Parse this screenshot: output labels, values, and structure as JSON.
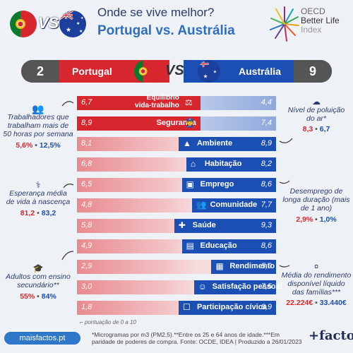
{
  "header": {
    "title_top": "Onde se vive melhor?",
    "title_main": "Portugal vs. Austrália",
    "vs_label": "VS",
    "oecd_line1": "OECD",
    "oecd_line2": "Better Life",
    "oecd_line3": "Index"
  },
  "scoreboard": {
    "pt_score": "2",
    "pt_name": "Portugal",
    "vs": "VS",
    "au_name": "Austrália",
    "au_score": "9"
  },
  "colors": {
    "portugal": "#d7262e",
    "australia": "#1c4fb3"
  },
  "chart_data": {
    "type": "bar",
    "title": "Portugal vs. Austrália",
    "scale": [
      0,
      10
    ],
    "categories": [
      "Equilíbrio vida-trabalho",
      "Segurança",
      "Ambiente",
      "Habitação",
      "Emprego",
      "Comunidade",
      "Saúde",
      "Educação",
      "Rendimento",
      "Satisfação pessoal",
      "Participação cívica"
    ],
    "series": [
      {
        "name": "Portugal",
        "values": [
          6.7,
          8.9,
          8.1,
          6.8,
          6.5,
          4.8,
          5.8,
          4.9,
          2.9,
          3.0,
          1.8
        ]
      },
      {
        "name": "Austrália",
        "values": [
          4.4,
          7.4,
          8.9,
          8.2,
          8.6,
          7.7,
          9.3,
          8.6,
          5.9,
          7.5,
          8.9
        ]
      }
    ],
    "display_values": {
      "pt": [
        "6,7",
        "8,9",
        "8,1",
        "6,8",
        "6,5",
        "4,8",
        "5,8",
        "4,9",
        "2,9",
        "3,0",
        "1,8"
      ],
      "au": [
        "4,4",
        "7,4",
        "8,9",
        "8,2",
        "8,6",
        "7,7",
        "9,3",
        "8,6",
        "5,9",
        "7,5",
        "8,9"
      ]
    },
    "labels": [
      "Equilíbrio\nvida-trabalho",
      "Segurança",
      "Ambiente",
      "Habitação",
      "Emprego",
      "Comunidade",
      "Saúde",
      "Educação",
      "Rendimento",
      "Satisfação pessoal",
      "Participação cívica"
    ],
    "winner": [
      "pt",
      "pt",
      "au",
      "au",
      "au",
      "au",
      "au",
      "au",
      "au",
      "au",
      "au"
    ],
    "icons": [
      "work-life-icon",
      "security-guard-icon",
      "tree-icon",
      "house-icon",
      "briefcase-icon",
      "people-icon",
      "health-cross-icon",
      "books-icon",
      "money-icon",
      "happy-person-icon",
      "ballot-box-icon"
    ]
  },
  "side_notes": {
    "hours": {
      "text": "Trabalhadores que trabalham mais de 50 horas por semana",
      "pt": "5,6%",
      "au": "12,5%"
    },
    "life": {
      "text": "Esperança média de vida à nascença",
      "pt": "81,2",
      "au": "83,2"
    },
    "adults": {
      "text": "Adultos com ensino secundário**",
      "pt": "55%",
      "au": "84%"
    },
    "air": {
      "text": "Nível de poluição do ar*",
      "pt": "8,3",
      "au": "6,7"
    },
    "unemp": {
      "text": "Desemprego de longa duração (mais de 1 ano)",
      "pt": "2,9%",
      "au": "1,0%"
    },
    "income": {
      "text": "Média do rendimento disponível líquido das famílias***",
      "pt": "22.224€",
      "au": "33.440€"
    },
    "sep": "•"
  },
  "footer": {
    "scale_note": "pontuação de 0 a 10",
    "note": "*Microgramas por m3 (PM2,5).**Entre os 25 e 64 anos de idade.***Em paridade de poderes de compra. Fonte: OCDE, IDEA | Produzido a 26/01/2023",
    "site": "maisfactos.pt",
    "brand": "+factos"
  }
}
